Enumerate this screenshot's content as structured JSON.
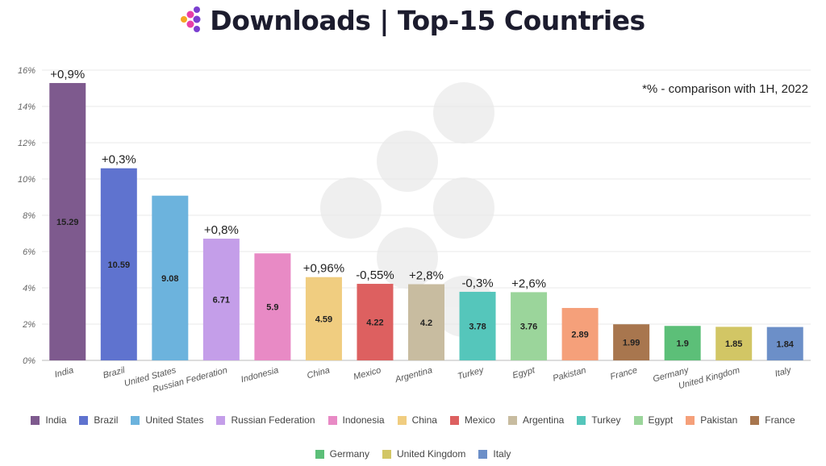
{
  "title": "Downloads | Top-15 Countries",
  "chart_data": {
    "type": "bar",
    "title": "Downloads | Top-15 Countries",
    "note": "*% - comparison with 1H, 2022",
    "ylabel": "",
    "xlabel": "",
    "ylim": [
      0,
      16
    ],
    "yticks": [
      "0%",
      "2%",
      "4%",
      "6%",
      "8%",
      "10%",
      "12%",
      "14%",
      "16%"
    ],
    "grid": true,
    "legend_position": "bottom",
    "categories": [
      "India",
      "Brazil",
      "United States",
      "Russian Federation",
      "Indonesia",
      "China",
      "Mexico",
      "Argentina",
      "Turkey",
      "Egypt",
      "Pakistan",
      "France",
      "Germany",
      "United Kingdom",
      "Italy"
    ],
    "values": [
      15.29,
      10.59,
      9.08,
      6.71,
      5.9,
      4.59,
      4.22,
      4.2,
      3.78,
      3.76,
      2.89,
      1.99,
      1.9,
      1.85,
      1.84
    ],
    "value_labels": [
      "15.29",
      "10.59",
      "9.08",
      "6.71",
      "5.9",
      "4.59",
      "4.22",
      "4.2",
      "3.78",
      "3.76",
      "2.89",
      "1.99",
      "1.9",
      "1.85",
      "1.84"
    ],
    "annotations": [
      "+0,9%",
      "+0,3%",
      "",
      "+0,8%",
      "",
      "+0,96%",
      "-0,55%",
      "+2,8%",
      "-0,3%",
      "+2,6%",
      "",
      "",
      "",
      "",
      ""
    ],
    "colors": [
      "#7e5a8e",
      "#5f73cf",
      "#6cb3dd",
      "#c49ee9",
      "#e88ac5",
      "#f0cd80",
      "#dd6060",
      "#c8bca0",
      "#55c6bb",
      "#9bd59b",
      "#f5a07a",
      "#a8764e",
      "#5cbf78",
      "#d2c665",
      "#6c8fc8"
    ]
  }
}
